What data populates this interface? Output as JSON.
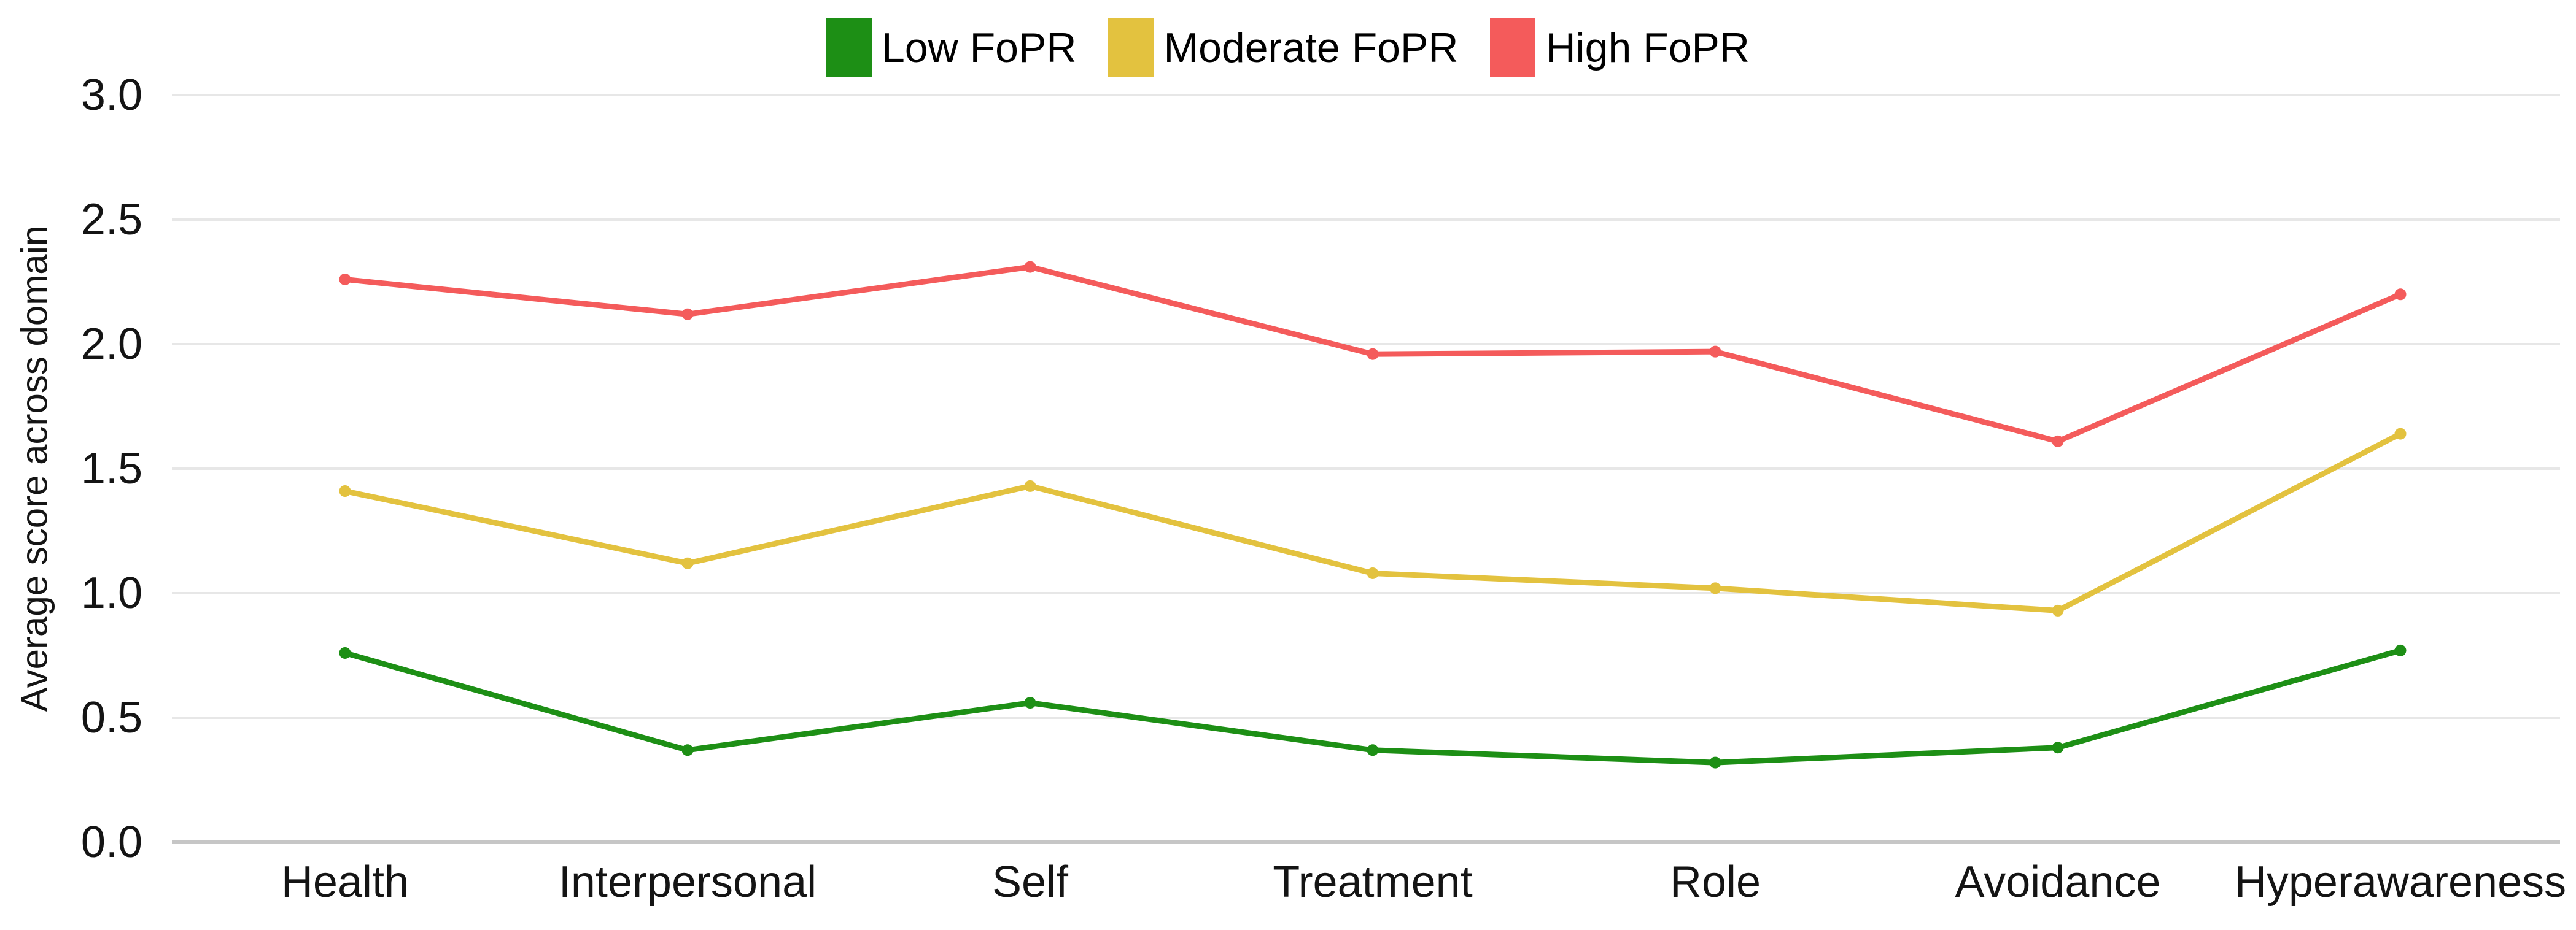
{
  "colors": {
    "background": "#ffffff",
    "gridline": "#e7e7e7",
    "axis_line": "#c6c6c6",
    "text": "#141414",
    "legend_text": "#000000"
  },
  "chart_data": {
    "type": "line",
    "title": "",
    "xlabel": "",
    "ylabel": "Average score across domain",
    "categories": [
      "Health",
      "Interpersonal",
      "Self",
      "Treatment",
      "Role",
      "Avoidance",
      "Hyperawareness"
    ],
    "series": [
      {
        "name": "Low FoPR",
        "color": "#1d8f15",
        "values": [
          0.76,
          0.37,
          0.56,
          0.37,
          0.32,
          0.38,
          0.77
        ]
      },
      {
        "name": "Moderate FoPR",
        "color": "#e3c23f",
        "values": [
          1.41,
          1.12,
          1.43,
          1.08,
          1.02,
          0.93,
          1.64
        ]
      },
      {
        "name": "High FoPR",
        "color": "#f45b5b",
        "values": [
          2.26,
          2.12,
          2.31,
          1.96,
          1.97,
          1.61,
          2.2
        ]
      }
    ],
    "ylim": [
      0,
      3
    ],
    "ytick_labels": [
      "0.0",
      "0.5",
      "1.0",
      "1.5",
      "2.0",
      "2.5",
      "3.0"
    ],
    "grid": true,
    "legend_position": "top",
    "marker": "circle"
  }
}
